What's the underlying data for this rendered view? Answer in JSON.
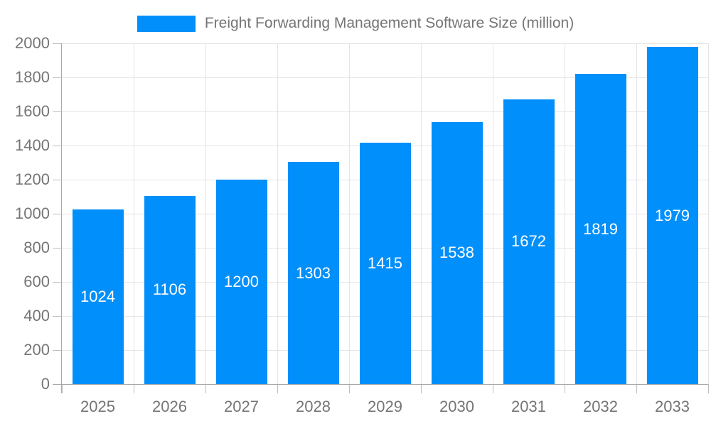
{
  "legend": {
    "label": "Freight Forwarding Management Software Size (million)"
  },
  "colors": {
    "bar": "#008FFB",
    "grid": "#e4e4e4",
    "axis": "#a9a9a9",
    "tick": "#bdbdbd",
    "text": "#757575",
    "value_label": "#ffffff",
    "background": "#ffffff"
  },
  "chart_data": {
    "type": "bar",
    "title": "Freight Forwarding Management Software Size (million)",
    "categories": [
      "2025",
      "2026",
      "2027",
      "2028",
      "2029",
      "2030",
      "2031",
      "2032",
      "2033"
    ],
    "values": [
      1024,
      1106,
      1200,
      1303,
      1415,
      1538,
      1672,
      1819,
      1979
    ],
    "xlabel": "",
    "ylabel": "",
    "ylim": [
      0,
      2000
    ],
    "ytick_step": 200,
    "ytick_labels": [
      "0",
      "200",
      "400",
      "600",
      "800",
      "1000",
      "1200",
      "1400",
      "1600",
      "1800",
      "2000"
    ],
    "grid": "horizontal-and-vertical",
    "legend_position": "top",
    "bar_value_labels": "inside-center"
  }
}
